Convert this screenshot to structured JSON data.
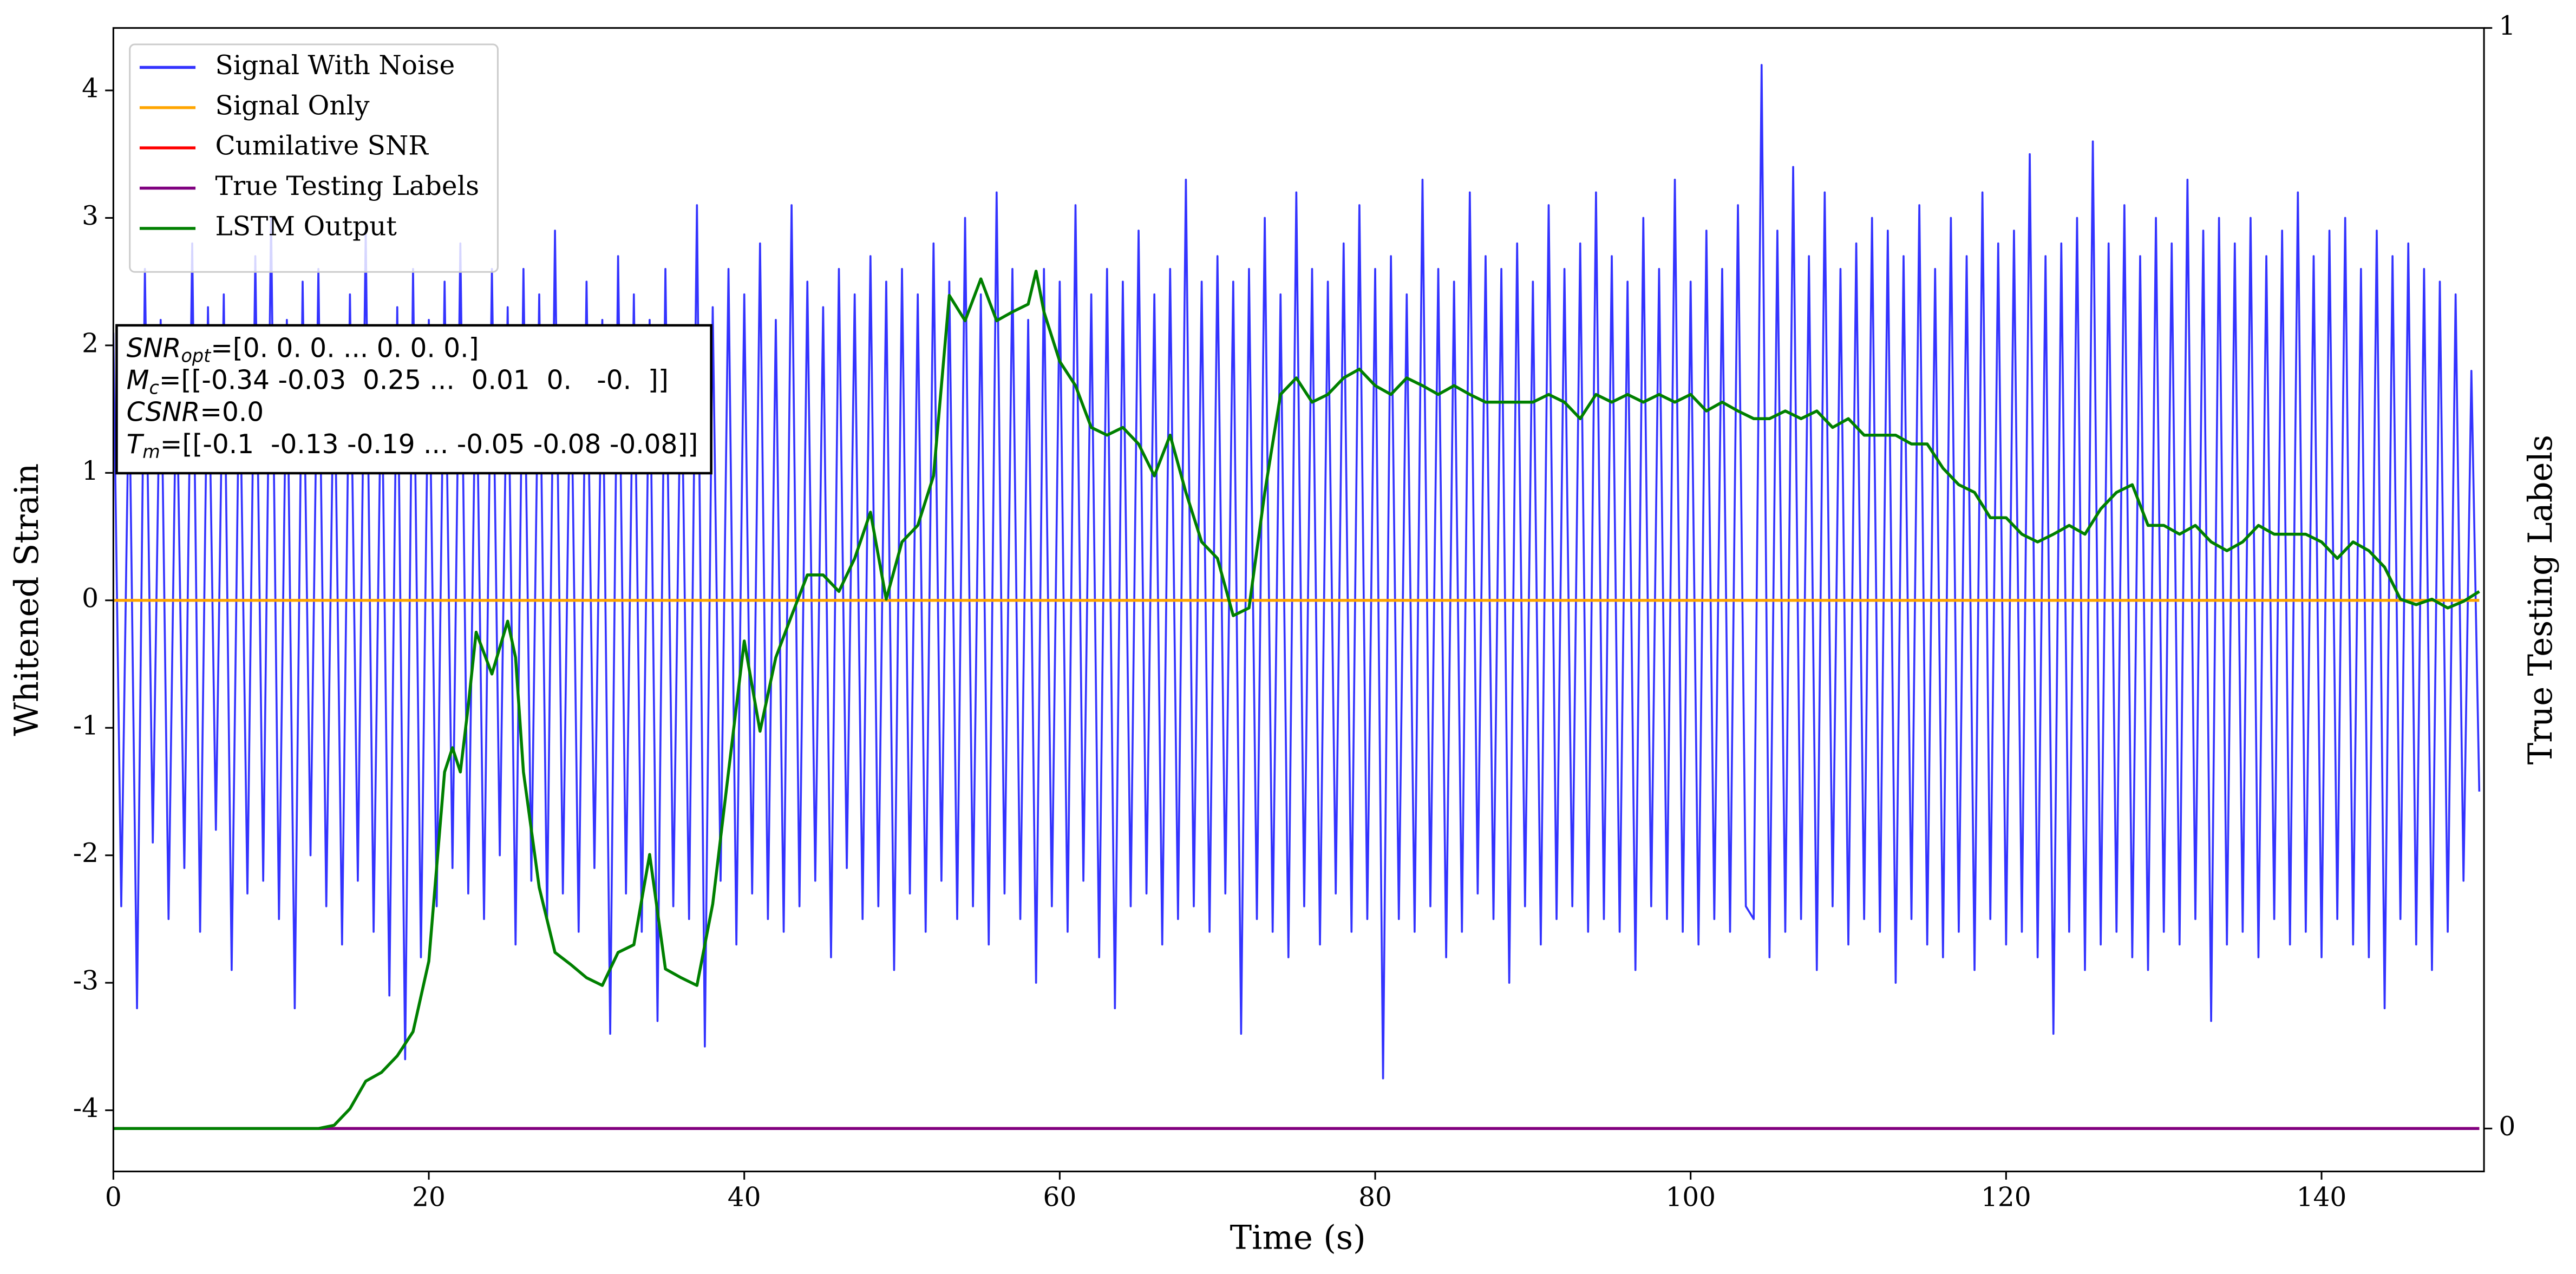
{
  "chart_data": {
    "type": "line",
    "xlabel": "Time (s)",
    "ylabel": "Whitened Strain",
    "y2label": "True Testing Labels",
    "xlim": [
      0,
      150.3
    ],
    "ylim": [
      -4.48,
      4.49
    ],
    "y2lim": [
      -0.039,
      1
    ],
    "xticks": [
      0,
      20,
      40,
      60,
      80,
      100,
      120,
      140
    ],
    "yticks": [
      -4,
      -3,
      -2,
      -1,
      0,
      1,
      2,
      3,
      4
    ],
    "y2ticks": [
      0,
      1
    ],
    "grid": false,
    "legend": "upper left",
    "series": [
      {
        "name": "Signal With Noise",
        "color": "#3333ff",
        "axis": "y",
        "x": [
          0,
          0.5,
          1,
          1.5,
          2,
          2.5,
          3,
          3.5,
          4,
          4.5,
          5,
          5.5,
          6,
          6.5,
          7,
          7.5,
          8,
          8.5,
          9,
          9.5,
          10,
          10.5,
          11,
          11.5,
          12,
          12.5,
          13,
          13.5,
          14,
          14.5,
          15,
          15.5,
          16,
          16.5,
          17,
          17.5,
          18,
          18.5,
          19,
          19.5,
          20,
          20.5,
          21,
          21.5,
          22,
          22.5,
          23,
          23.5,
          24,
          24.5,
          25,
          25.5,
          26,
          26.5,
          27,
          27.5,
          28,
          28.5,
          29,
          29.5,
          30,
          30.5,
          31,
          31.5,
          32,
          32.5,
          33,
          33.5,
          34,
          34.5,
          35,
          35.5,
          36,
          36.5,
          37,
          37.5,
          38,
          38.5,
          39,
          39.5,
          40,
          40.5,
          41,
          41.5,
          42,
          42.5,
          43,
          43.5,
          44,
          44.5,
          45,
          45.5,
          46,
          46.5,
          47,
          47.5,
          48,
          48.5,
          49,
          49.5,
          50,
          50.5,
          51,
          51.5,
          52,
          52.5,
          53,
          53.5,
          54,
          54.5,
          55,
          55.5,
          56,
          56.5,
          57,
          57.5,
          58,
          58.5,
          59,
          59.5,
          60,
          60.5,
          61,
          61.5,
          62,
          62.5,
          63,
          63.5,
          64,
          64.5,
          65,
          65.5,
          66,
          66.5,
          67,
          67.5,
          68,
          68.5,
          69,
          69.5,
          70,
          70.5,
          71,
          71.5,
          72,
          72.5,
          73,
          73.5,
          74,
          74.5,
          75,
          75.5,
          76,
          76.5,
          77,
          77.5,
          78,
          78.5,
          79,
          79.5,
          80,
          80.5,
          81,
          81.5,
          82,
          82.5,
          83,
          83.5,
          84,
          84.5,
          85,
          85.5,
          86,
          86.5,
          87,
          87.5,
          88,
          88.5,
          89,
          89.5,
          90,
          90.5,
          91,
          91.5,
          92,
          92.5,
          93,
          93.5,
          94,
          94.5,
          95,
          95.5,
          96,
          96.5,
          97,
          97.5,
          98,
          98.5,
          99,
          99.5,
          100,
          100.5,
          101,
          101.5,
          102,
          102.5,
          103,
          103.5,
          104,
          104.5,
          105,
          105.5,
          106,
          106.5,
          107,
          107.5,
          108,
          108.5,
          109,
          109.5,
          110,
          110.5,
          111,
          111.5,
          112,
          112.5,
          113,
          113.5,
          114,
          114.5,
          115,
          115.5,
          116,
          116.5,
          117,
          117.5,
          118,
          118.5,
          119,
          119.5,
          120,
          120.5,
          121,
          121.5,
          122,
          122.5,
          123,
          123.5,
          124,
          124.5,
          125,
          125.5,
          126,
          126.5,
          127,
          127.5,
          128,
          128.5,
          129,
          129.5,
          130,
          130.5,
          131,
          131.5,
          132,
          132.5,
          133,
          133.5,
          134,
          134.5,
          135,
          135.5,
          136,
          136.5,
          137,
          137.5,
          138,
          138.5,
          139,
          139.5,
          140,
          140.5,
          141,
          141.5,
          142,
          142.5,
          143,
          143.5,
          144,
          144.5,
          145,
          145.5,
          146,
          146.5,
          147,
          147.5,
          148,
          148.5,
          149,
          149.5,
          150
        ],
        "values": [
          2.1,
          -2.4,
          1.8,
          -3.2,
          2.6,
          -1.9,
          2.2,
          -2.5,
          1.9,
          -2.1,
          2.8,
          -2.6,
          2.3,
          -1.8,
          2.4,
          -2.9,
          2.0,
          -2.3,
          2.7,
          -2.2,
          3.0,
          -2.5,
          2.2,
          -3.2,
          2.5,
          -2.0,
          2.6,
          -2.4,
          2.1,
          -2.7,
          2.4,
          -2.2,
          2.9,
          -2.6,
          2.0,
          -3.1,
          2.3,
          -3.6,
          2.6,
          -2.8,
          2.2,
          -2.4,
          2.5,
          -2.1,
          2.8,
          -2.3,
          2.1,
          -2.5,
          2.6,
          -2.0,
          2.3,
          -2.7,
          2.6,
          -2.2,
          2.4,
          -2.5,
          2.9,
          -2.3,
          2.1,
          -2.6,
          2.5,
          -2.1,
          2.2,
          -3.4,
          2.7,
          -2.3,
          2.4,
          -2.6,
          2.2,
          -3.3,
          2.6,
          -2.4,
          2.1,
          -2.5,
          3.1,
          -3.5,
          2.3,
          -2.2,
          2.6,
          -2.7,
          2.4,
          -2.3,
          2.8,
          -2.5,
          2.2,
          -2.6,
          3.1,
          -2.4,
          2.5,
          -2.2,
          2.3,
          -2.8,
          2.6,
          -2.1,
          2.4,
          -2.5,
          2.7,
          -2.4,
          2.5,
          -2.9,
          2.6,
          -2.3,
          2.4,
          -2.6,
          2.8,
          -2.2,
          2.5,
          -2.5,
          3.0,
          -2.4,
          2.4,
          -2.7,
          3.2,
          -2.3,
          2.6,
          -2.5,
          2.2,
          -3.0,
          2.6,
          -2.4,
          2.5,
          -2.6,
          3.1,
          -2.2,
          2.4,
          -2.8,
          2.6,
          -3.2,
          2.5,
          -2.4,
          2.9,
          -2.3,
          2.4,
          -2.7,
          2.6,
          -2.5,
          3.3,
          -2.4,
          2.5,
          -2.6,
          2.7,
          -2.3,
          2.5,
          -3.4,
          2.6,
          -2.5,
          3.0,
          -2.6,
          2.4,
          -2.8,
          3.2,
          -2.4,
          2.6,
          -2.7,
          2.5,
          -2.3,
          2.8,
          -2.6,
          3.1,
          -2.5,
          2.6,
          -3.75,
          2.7,
          -2.5,
          2.4,
          -2.6,
          3.3,
          -2.4,
          2.6,
          -2.8,
          2.5,
          -2.6,
          3.2,
          -2.3,
          2.7,
          -2.5,
          2.6,
          -3.0,
          2.8,
          -2.4,
          2.5,
          -2.7,
          3.1,
          -2.5,
          2.6,
          -2.4,
          2.8,
          -2.6,
          3.2,
          -2.5,
          2.7,
          -2.6,
          2.5,
          -2.9,
          3.0,
          -2.4,
          2.6,
          -2.5,
          3.3,
          -2.6,
          2.5,
          -2.7,
          2.9,
          -2.5,
          2.6,
          -2.6,
          3.1,
          -2.4,
          -2.5,
          4.2,
          -2.8,
          2.9,
          -2.6,
          3.4,
          -2.5,
          2.7,
          -2.9,
          3.2,
          -2.4,
          2.6,
          -2.7,
          2.8,
          -2.5,
          3.0,
          -2.6,
          2.9,
          -3.0,
          2.7,
          -2.5,
          3.1,
          -2.7,
          2.6,
          -2.8,
          3.0,
          -2.6,
          2.7,
          -2.9,
          3.2,
          -2.5,
          2.8,
          -2.7,
          2.9,
          -2.6,
          3.5,
          -2.8,
          2.7,
          -3.4,
          2.8,
          -2.6,
          3.0,
          -2.9,
          3.6,
          -2.7,
          2.8,
          -2.6,
          3.1,
          -2.8,
          2.7,
          -2.9,
          3.0,
          -2.6,
          2.8,
          -2.7,
          3.3,
          -2.5,
          2.9,
          -3.3,
          3.0,
          -2.7,
          2.8,
          -2.6,
          3.0,
          -2.8,
          2.7,
          -2.5,
          2.9,
          -2.7,
          3.2,
          -2.6,
          2.7,
          -2.8,
          2.9,
          -2.5,
          3.0,
          -2.7,
          2.6,
          -2.8,
          2.9,
          -3.2,
          2.7,
          -2.5,
          2.8,
          -2.7,
          2.6,
          -2.9,
          2.5,
          -2.6,
          2.4,
          -2.2,
          1.8,
          -1.5
        ]
      },
      {
        "name": "Signal Only",
        "color": "#ffa500",
        "axis": "y",
        "x": [
          0,
          150
        ],
        "values": [
          0,
          0
        ]
      },
      {
        "name": "Cumilative SNR",
        "color": "#ff0000",
        "axis": "y2",
        "x": [
          0,
          150
        ],
        "values": [
          0,
          0
        ]
      },
      {
        "name": "True Testing Labels",
        "color": "#800080",
        "axis": "y2",
        "x": [
          0,
          150
        ],
        "values": [
          0,
          0
        ]
      },
      {
        "name": "LSTM Output",
        "color": "#008000",
        "axis": "y2",
        "x": [
          0,
          1,
          2,
          3,
          4,
          5,
          6,
          7,
          8,
          9,
          10,
          11,
          12,
          13,
          14,
          15,
          16,
          17,
          18,
          19,
          20,
          21,
          21.5,
          22,
          22.5,
          23,
          24,
          25,
          25.5,
          26,
          27,
          28,
          29,
          30,
          31,
          32,
          33,
          34,
          35,
          36,
          37,
          38,
          39,
          40,
          41,
          42,
          43,
          44,
          45,
          46,
          47,
          48,
          49,
          50,
          51,
          52,
          53,
          54,
          55,
          56,
          57,
          58,
          58.5,
          59,
          60,
          61,
          62,
          63,
          64,
          65,
          66,
          67,
          68,
          69,
          70,
          71,
          72,
          73,
          74,
          75,
          76,
          77,
          78,
          79,
          80,
          81,
          82,
          83,
          84,
          85,
          86,
          87,
          88,
          89,
          90,
          91,
          92,
          93,
          94,
          95,
          96,
          97,
          98,
          99,
          100,
          101,
          102,
          103,
          104,
          105,
          106,
          107,
          108,
          109,
          110,
          111,
          112,
          113,
          114,
          115,
          116,
          117,
          118,
          119,
          120,
          121,
          122,
          123,
          124,
          125,
          126,
          127,
          128,
          129,
          130,
          131,
          132,
          133,
          134,
          135,
          136,
          137,
          138,
          139,
          140,
          141,
          142,
          143,
          144,
          145,
          146,
          147,
          148,
          149,
          150
        ],
        "values": [
          0,
          0,
          0,
          0,
          0,
          0,
          0,
          0,
          0,
          0,
          0,
          0,
          0,
          0,
          0.003,
          0.018,
          0.043,
          0.051,
          0.066,
          0.088,
          0.152,
          0.324,
          0.346,
          0.324,
          0.384,
          0.451,
          0.413,
          0.461,
          0.428,
          0.324,
          0.219,
          0.16,
          0.149,
          0.137,
          0.13,
          0.16,
          0.167,
          0.249,
          0.145,
          0.137,
          0.13,
          0.204,
          0.324,
          0.443,
          0.361,
          0.428,
          0.466,
          0.503,
          0.503,
          0.488,
          0.518,
          0.56,
          0.481,
          0.533,
          0.548,
          0.593,
          0.757,
          0.734,
          0.772,
          0.734,
          0.742,
          0.749,
          0.779,
          0.742,
          0.697,
          0.675,
          0.637,
          0.63,
          0.637,
          0.622,
          0.593,
          0.63,
          0.578,
          0.533,
          0.518,
          0.466,
          0.473,
          0.578,
          0.667,
          0.682,
          0.66,
          0.667,
          0.682,
          0.69,
          0.675,
          0.667,
          0.682,
          0.675,
          0.667,
          0.675,
          0.667,
          0.66,
          0.66,
          0.66,
          0.66,
          0.667,
          0.66,
          0.645,
          0.667,
          0.66,
          0.667,
          0.66,
          0.667,
          0.66,
          0.667,
          0.652,
          0.66,
          0.652,
          0.645,
          0.645,
          0.652,
          0.645,
          0.652,
          0.637,
          0.645,
          0.63,
          0.63,
          0.63,
          0.622,
          0.622,
          0.6,
          0.585,
          0.578,
          0.555,
          0.555,
          0.54,
          0.533,
          0.54,
          0.548,
          0.54,
          0.563,
          0.578,
          0.585,
          0.548,
          0.548,
          0.54,
          0.548,
          0.533,
          0.525,
          0.533,
          0.548,
          0.54,
          0.54,
          0.54,
          0.533,
          0.518,
          0.533,
          0.525,
          0.51,
          0.481,
          0.476,
          0.481,
          0.473,
          0.479,
          0.488
        ]
      }
    ],
    "annotations": [
      {
        "name": "SNR",
        "sub": "opt",
        "text": "=[0. 0. 0. ... 0. 0. 0.]"
      },
      {
        "name": "M",
        "sub": "c",
        "text": "=[[-0.34 -0.03  0.25 ...  0.01  0.   -0.  ]]"
      },
      {
        "name": "CSNR",
        "text": "=0.0"
      },
      {
        "name": "T",
        "sub": "m",
        "text": "=[[-0.1  -0.13 -0.19 ... -0.05 -0.08 -0.08]]"
      }
    ]
  }
}
